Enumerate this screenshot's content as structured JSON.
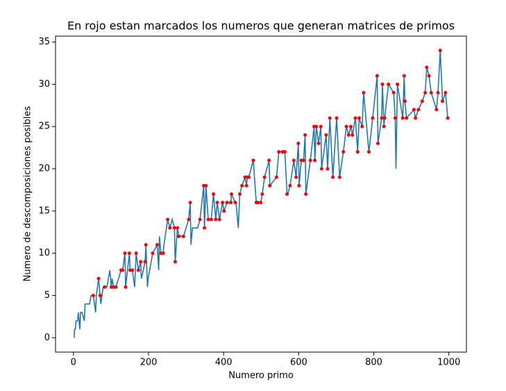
{
  "chart_data": {
    "type": "line",
    "title": "En rojo estan marcados los numeros que generan matrices de primos",
    "xlabel": "Numero primo",
    "ylabel": "Numero de descomposiciones posibles",
    "xlim": [
      -47.75,
      1046.75
    ],
    "ylim": [
      -1.7,
      35.7
    ],
    "xticks": [
      0,
      200,
      400,
      600,
      800,
      1000
    ],
    "yticks": [
      0,
      5,
      10,
      15,
      20,
      25,
      30,
      35
    ],
    "series": [
      {
        "type": "line",
        "color": "#1f77b4",
        "x": [
          2,
          3,
          5,
          7,
          11,
          13,
          17,
          19,
          23,
          29,
          31,
          37,
          41,
          43,
          47,
          53,
          59,
          61,
          67,
          71,
          73,
          79,
          83,
          89,
          97,
          101,
          103,
          107,
          109,
          113,
          127,
          131,
          137,
          139,
          149,
          151,
          157,
          163,
          167,
          173,
          179,
          181,
          191,
          193,
          197,
          199,
          211,
          223,
          227,
          229,
          233,
          239,
          241,
          251,
          257,
          263,
          269,
          271,
          277,
          281,
          283,
          293,
          307,
          311,
          313,
          317,
          331,
          337,
          347,
          349,
          353,
          359,
          367,
          373,
          379,
          383,
          389,
          397,
          401,
          409,
          419,
          421,
          431,
          433,
          439,
          443,
          449,
          457,
          461,
          463,
          467,
          479,
          487,
          491,
          499,
          503,
          509,
          521,
          523,
          541,
          547,
          557,
          563,
          569,
          571,
          577,
          587,
          593,
          599,
          601,
          607,
          613,
          617,
          619,
          631,
          641,
          643,
          647,
          653,
          659,
          661,
          673,
          677,
          683,
          691,
          701,
          709,
          719,
          727,
          733,
          739,
          743,
          751,
          757,
          761,
          769,
          773,
          787,
          797,
          809,
          811,
          821,
          823,
          827,
          829,
          839,
          853,
          857,
          859,
          863,
          877,
          881,
          883,
          887,
          907,
          911,
          919,
          929,
          937,
          941,
          947,
          953,
          967,
          971,
          977,
          983,
          991,
          997
        ],
        "values": [
          0,
          1,
          1,
          2,
          2,
          3,
          1,
          3,
          3,
          2,
          4,
          4,
          4,
          4,
          5,
          5,
          3,
          5,
          7,
          5,
          4,
          6,
          6,
          6,
          8,
          6,
          7,
          6,
          6,
          6,
          8,
          8,
          10,
          6,
          10,
          8,
          8,
          6,
          10,
          8,
          9,
          7,
          9,
          11,
          6,
          7,
          10,
          11,
          8,
          12,
          10,
          10,
          11,
          14,
          13,
          14,
          13,
          9,
          13,
          12,
          12,
          12,
          14,
          16,
          11,
          13,
          13,
          14,
          18,
          13,
          18,
          14,
          14,
          17,
          14,
          16,
          14,
          16,
          15,
          16,
          16,
          17,
          16,
          16,
          13,
          17,
          18,
          19,
          18,
          19,
          19,
          21,
          16,
          16,
          16,
          17,
          19,
          21,
          18,
          19,
          22,
          22,
          22,
          17,
          17,
          18,
          21,
          19,
          23,
          18,
          21,
          21,
          24,
          17,
          21,
          25,
          21,
          25,
          23,
          25,
          20,
          24,
          20,
          26,
          19,
          26,
          19,
          22,
          25,
          24,
          25,
          24,
          26,
          22,
          26,
          25,
          29,
          22,
          26,
          31,
          23,
          26,
          30,
          25,
          26,
          30,
          29,
          26,
          20,
          30,
          26,
          31,
          28,
          26,
          27,
          26,
          27,
          28,
          29,
          32,
          31,
          29,
          27,
          29,
          34,
          28,
          29,
          26
        ]
      },
      {
        "type": "scatter",
        "color": "#ff0000",
        "x": [
          53,
          67,
          71,
          83,
          101,
          107,
          113,
          127,
          131,
          137,
          139,
          149,
          151,
          157,
          167,
          173,
          179,
          191,
          193,
          211,
          223,
          233,
          239,
          251,
          257,
          269,
          271,
          277,
          281,
          293,
          307,
          311,
          337,
          347,
          349,
          353,
          359,
          367,
          373,
          379,
          383,
          389,
          397,
          401,
          409,
          419,
          421,
          431,
          443,
          449,
          457,
          461,
          463,
          467,
          479,
          487,
          491,
          499,
          503,
          509,
          521,
          523,
          541,
          547,
          557,
          563,
          569,
          577,
          587,
          593,
          599,
          601,
          607,
          613,
          617,
          619,
          631,
          641,
          643,
          647,
          653,
          659,
          661,
          673,
          677,
          683,
          691,
          701,
          709,
          719,
          727,
          733,
          739,
          743,
          751,
          757,
          761,
          769,
          773,
          787,
          797,
          809,
          811,
          821,
          823,
          827,
          829,
          839,
          853,
          857,
          863,
          877,
          881,
          883,
          887,
          907,
          911,
          919,
          929,
          937,
          941,
          947,
          953,
          967,
          971,
          977,
          983,
          991,
          997
        ],
        "values": [
          5,
          7,
          5,
          6,
          6,
          6,
          6,
          8,
          8,
          10,
          6,
          10,
          8,
          8,
          10,
          8,
          9,
          9,
          11,
          10,
          11,
          10,
          10,
          14,
          13,
          13,
          9,
          13,
          12,
          12,
          14,
          16,
          14,
          18,
          13,
          18,
          14,
          14,
          17,
          14,
          16,
          14,
          16,
          15,
          16,
          16,
          17,
          16,
          17,
          18,
          19,
          18,
          19,
          19,
          21,
          16,
          16,
          16,
          17,
          19,
          21,
          18,
          19,
          22,
          22,
          22,
          17,
          18,
          21,
          19,
          23,
          18,
          21,
          21,
          24,
          17,
          21,
          25,
          21,
          25,
          23,
          25,
          20,
          24,
          20,
          26,
          19,
          26,
          19,
          22,
          25,
          24,
          25,
          24,
          26,
          22,
          26,
          25,
          29,
          22,
          26,
          31,
          23,
          26,
          30,
          25,
          26,
          30,
          29,
          26,
          30,
          26,
          31,
          28,
          26,
          27,
          26,
          27,
          28,
          29,
          32,
          31,
          29,
          27,
          29,
          34,
          28,
          29,
          26
        ]
      }
    ]
  }
}
